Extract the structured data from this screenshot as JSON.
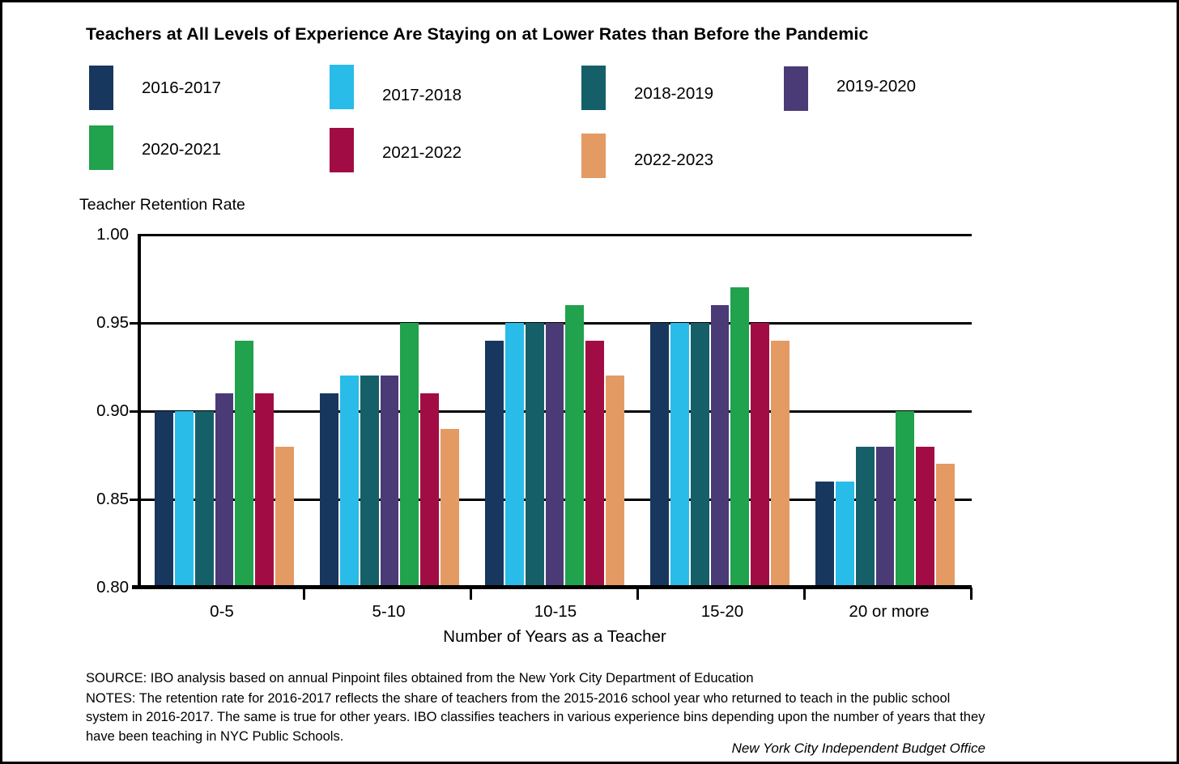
{
  "title": "Teachers at All Levels of Experience Are Staying on at Lower Rates than Before the Pandemic",
  "y_axis_caption": "Teacher Retention Rate",
  "footer": {
    "source": "SOURCE: IBO analysis based on annual Pinpoint files obtained from the New York City Department of Education",
    "notes": "NOTES:  The retention rate for 2016-2017 reflects the share of teachers from the 2015-2016 school year who returned to teach in the public school system in 2016-2017. The same is true for other years. IBO classifies teachers in various experience bins depending upon the number of years that they have been teaching in NYC Public Schools.",
    "attribution": "New York City Independent Budget Office"
  },
  "chart_data": {
    "type": "bar",
    "title": "Teachers at All Levels of Experience Are Staying on at Lower Rates than Before the Pandemic",
    "categories": [
      "0-5",
      "5-10",
      "10-15",
      "15-20",
      "20 or more"
    ],
    "series": [
      {
        "name": "2016-2017",
        "color": "#17375e",
        "values": [
          0.9,
          0.91,
          0.94,
          0.95,
          0.86
        ]
      },
      {
        "name": "2017-2018",
        "color": "#29bce8",
        "values": [
          0.9,
          0.92,
          0.95,
          0.95,
          0.86
        ]
      },
      {
        "name": "2018-2019",
        "color": "#156068",
        "values": [
          0.9,
          0.92,
          0.95,
          0.95,
          0.88
        ]
      },
      {
        "name": "2019-2020",
        "color": "#4a3a76",
        "values": [
          0.91,
          0.92,
          0.95,
          0.96,
          0.88
        ]
      },
      {
        "name": "2020-2021",
        "color": "#21a24c",
        "values": [
          0.94,
          0.95,
          0.96,
          0.97,
          0.9
        ]
      },
      {
        "name": "2021-2022",
        "color": "#a20c44",
        "values": [
          0.91,
          0.91,
          0.94,
          0.95,
          0.88
        ]
      },
      {
        "name": "2022-2023",
        "color": "#e49a63",
        "values": [
          0.88,
          0.89,
          0.92,
          0.94,
          0.87
        ]
      }
    ],
    "xlabel": "Number of Years as a Teacher",
    "ylabel": "Teacher Retention Rate",
    "ylim": [
      0.8,
      1.0
    ],
    "yticks": [
      "1.00",
      "0.95",
      "0.90",
      "0.85",
      "0.80"
    ],
    "grid": true,
    "legend_position": "top"
  }
}
